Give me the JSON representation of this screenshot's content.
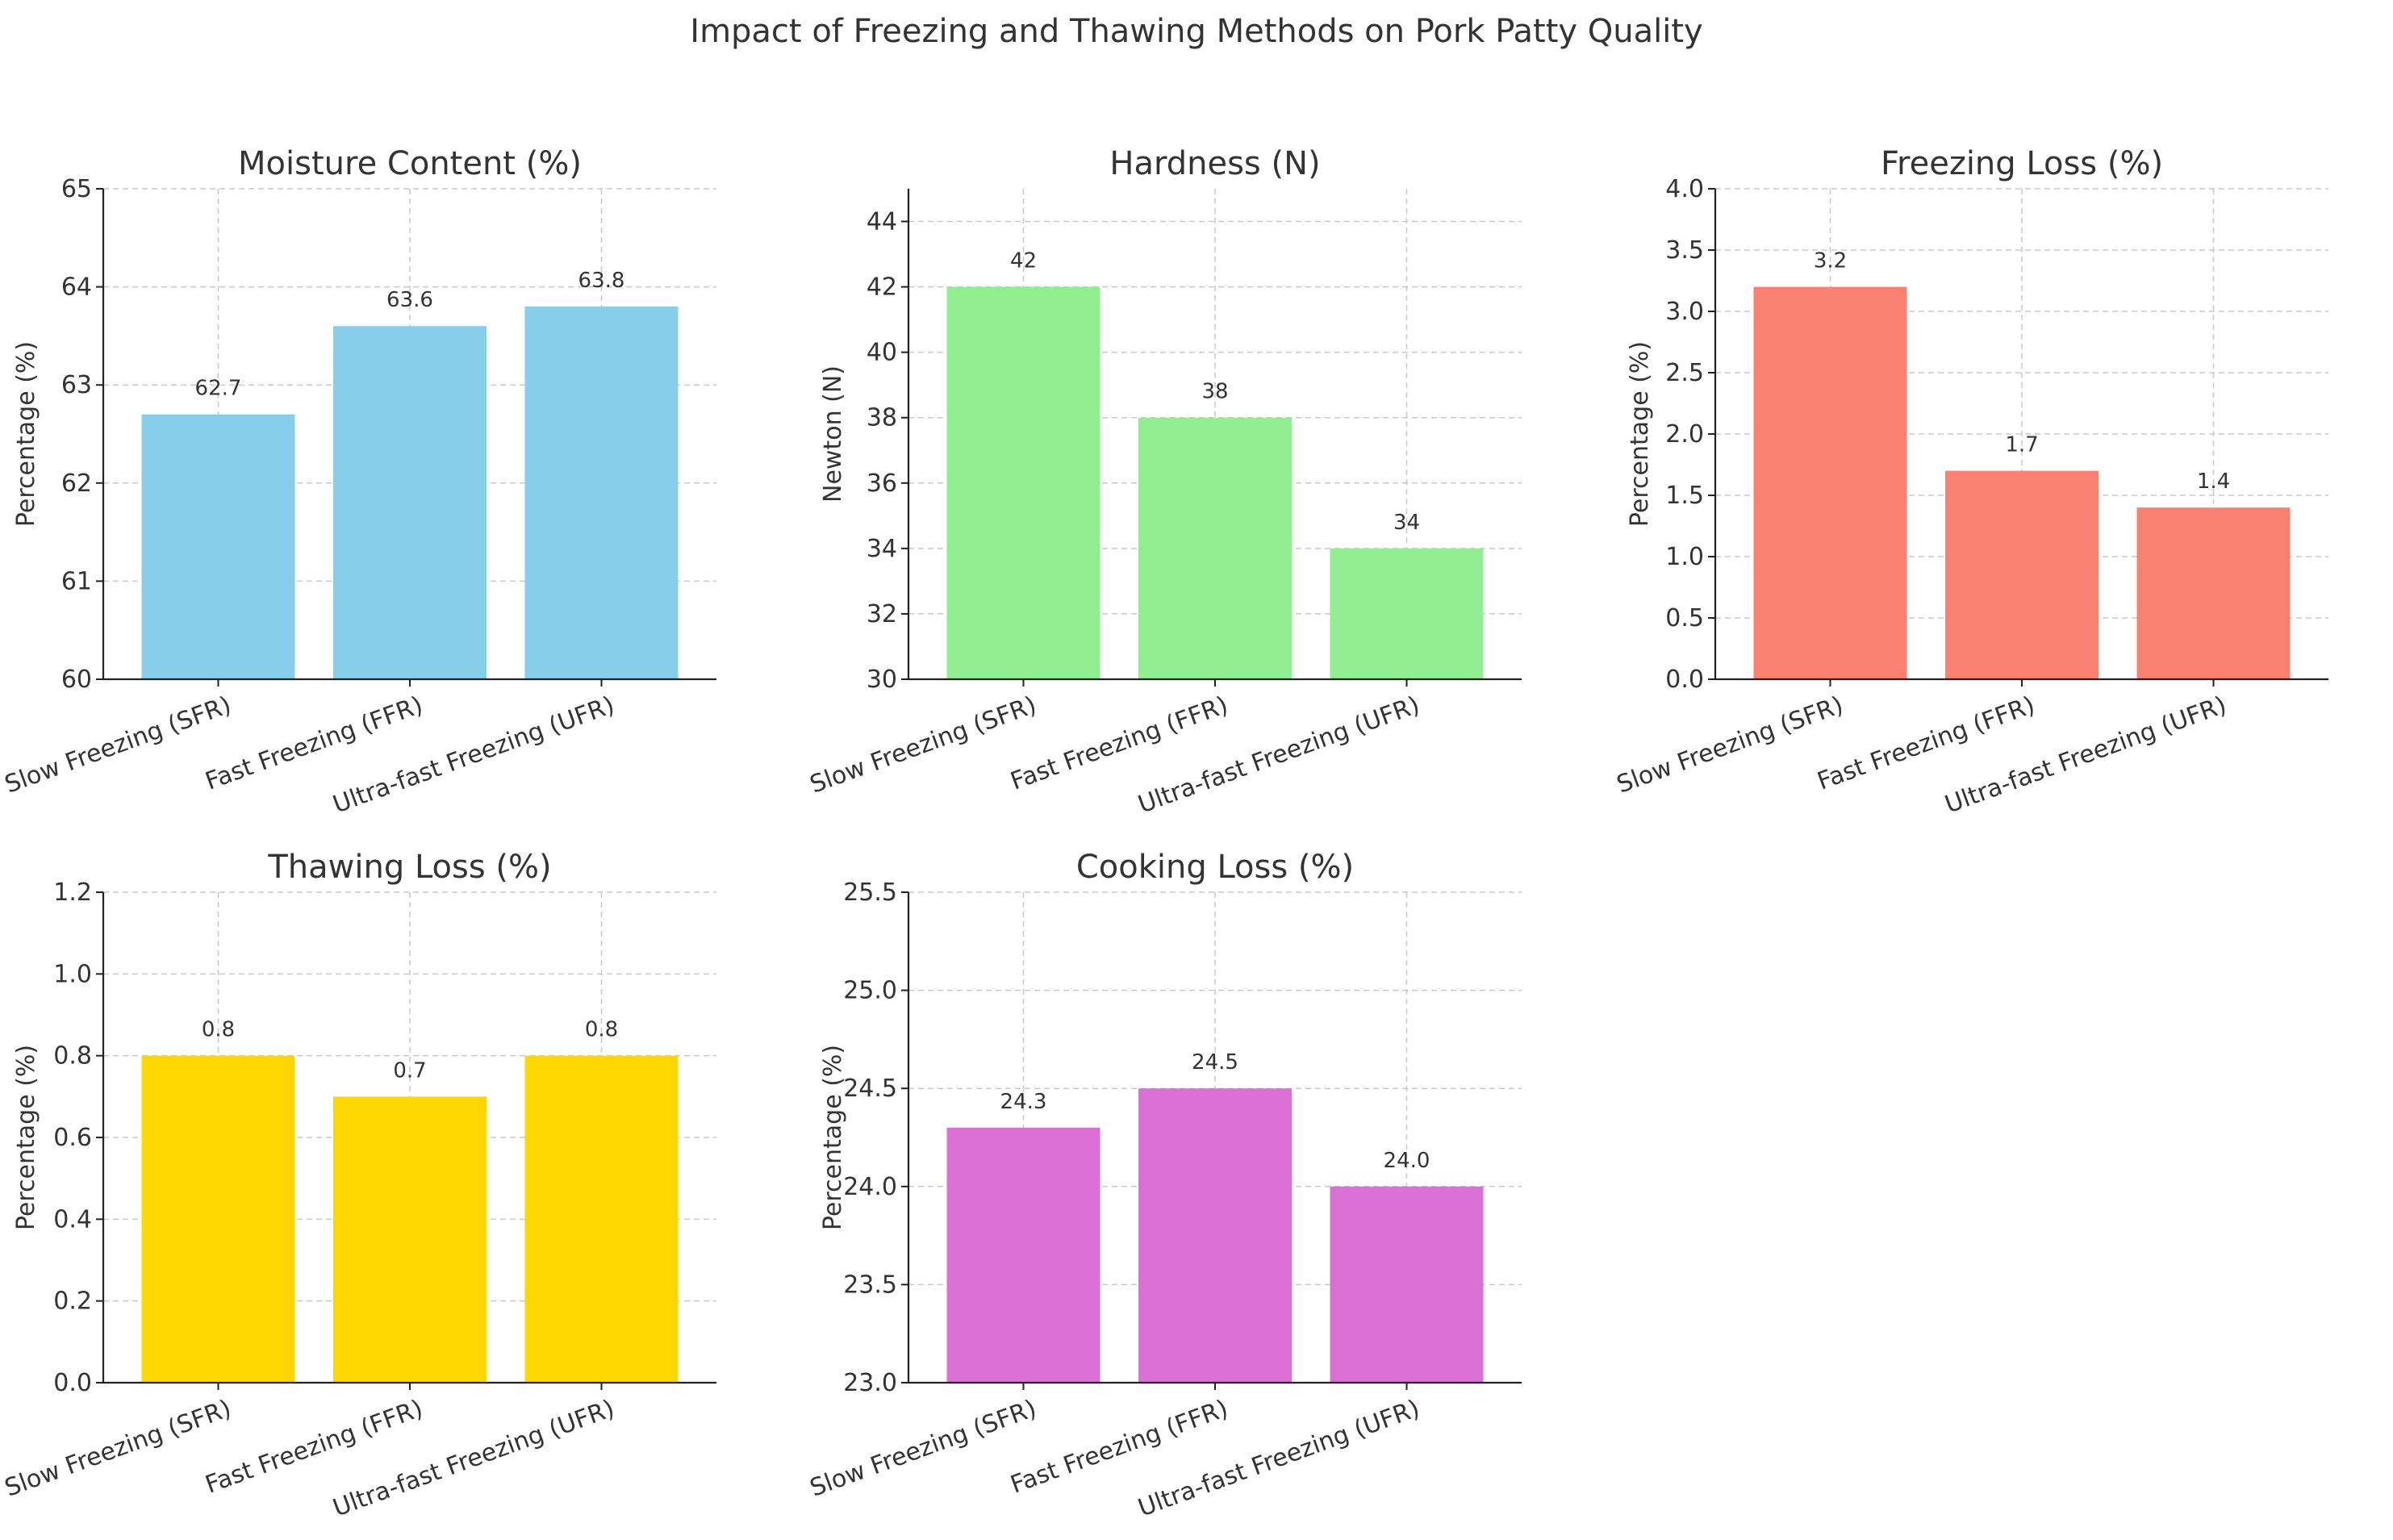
{
  "figure": {
    "title": "Impact of Freezing and Thawing Methods on Pork Patty Quality"
  },
  "colors": {
    "moisture": "#87CEEB",
    "hardness": "#90EE90",
    "freezing_loss": "#FA8072",
    "thawing_loss": "#FFD700",
    "cooking_loss": "#DA70D6"
  },
  "chart_data": [
    {
      "type": "bar",
      "title": "Moisture Content (%)",
      "ylabel": "Percentage (%)",
      "categories": [
        "Slow Freezing (SFR)",
        "Fast Freezing (FFR)",
        "Ultra-fast Freezing (UFR)"
      ],
      "values": [
        62.7,
        63.6,
        63.8
      ],
      "value_labels": [
        "62.7",
        "63.6",
        "63.8"
      ],
      "ylim": [
        60,
        65
      ],
      "yticks": [
        60,
        61,
        62,
        63,
        64,
        65
      ],
      "ytick_labels": [
        "60",
        "61",
        "62",
        "63",
        "64",
        "65"
      ],
      "color": "#87CEEB",
      "grid": true
    },
    {
      "type": "bar",
      "title": "Hardness (N)",
      "ylabel": "Newton (N)",
      "categories": [
        "Slow Freezing (SFR)",
        "Fast Freezing (FFR)",
        "Ultra-fast Freezing (UFR)"
      ],
      "values": [
        42,
        38,
        34
      ],
      "value_labels": [
        "42",
        "38",
        "34"
      ],
      "ylim": [
        30,
        45
      ],
      "yticks": [
        30,
        32,
        34,
        36,
        38,
        40,
        42,
        44
      ],
      "ytick_labels": [
        "30",
        "32",
        "34",
        "36",
        "38",
        "40",
        "42",
        "44"
      ],
      "color": "#90EE90",
      "grid": true
    },
    {
      "type": "bar",
      "title": "Freezing Loss (%)",
      "ylabel": "Percentage (%)",
      "categories": [
        "Slow Freezing (SFR)",
        "Fast Freezing (FFR)",
        "Ultra-fast Freezing (UFR)"
      ],
      "values": [
        3.2,
        1.7,
        1.4
      ],
      "value_labels": [
        "3.2",
        "1.7",
        "1.4"
      ],
      "ylim": [
        0,
        4
      ],
      "yticks": [
        0,
        0.5,
        1,
        1.5,
        2,
        2.5,
        3,
        3.5,
        4
      ],
      "ytick_labels": [
        "0.0",
        "0.5",
        "1.0",
        "1.5",
        "2.0",
        "2.5",
        "3.0",
        "3.5",
        "4.0"
      ],
      "color": "#FA8072",
      "grid": true
    },
    {
      "type": "bar",
      "title": "Thawing Loss (%)",
      "ylabel": "Percentage (%)",
      "categories": [
        "Slow Freezing (SFR)",
        "Fast Freezing (FFR)",
        "Ultra-fast Freezing (UFR)"
      ],
      "values": [
        0.8,
        0.7,
        0.8
      ],
      "value_labels": [
        "0.8",
        "0.7",
        "0.8"
      ],
      "ylim": [
        0,
        1.2
      ],
      "yticks": [
        0,
        0.2,
        0.4,
        0.6,
        0.8,
        1,
        1.2
      ],
      "ytick_labels": [
        "0.0",
        "0.2",
        "0.4",
        "0.6",
        "0.8",
        "1.0",
        "1.2"
      ],
      "color": "#FFD700",
      "grid": true
    },
    {
      "type": "bar",
      "title": "Cooking Loss (%)",
      "ylabel": "Percentage (%)",
      "categories": [
        "Slow Freezing (SFR)",
        "Fast Freezing (FFR)",
        "Ultra-fast Freezing (UFR)"
      ],
      "values": [
        24.3,
        24.5,
        24.0
      ],
      "value_labels": [
        "24.3",
        "24.5",
        "24.0"
      ],
      "ylim": [
        23,
        25.5
      ],
      "yticks": [
        23,
        23.5,
        24,
        24.5,
        25,
        25.5
      ],
      "ytick_labels": [
        "23.0",
        "23.5",
        "24.0",
        "24.5",
        "25.0",
        "25.5"
      ],
      "color": "#DA70D6",
      "grid": true
    }
  ]
}
